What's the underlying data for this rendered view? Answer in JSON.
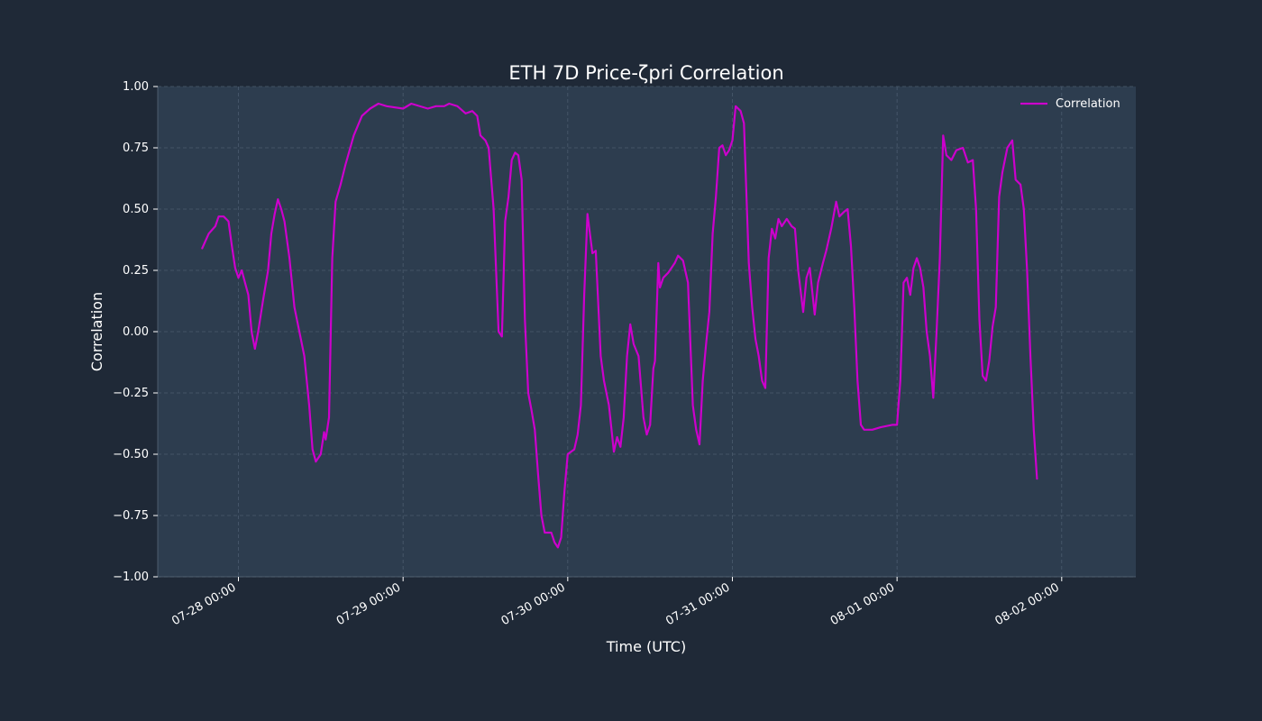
{
  "chart_data": {
    "type": "line",
    "title": "ETH 7D Price-ζpri Correlation",
    "xlabel": "Time (UTC)",
    "ylabel": "Correlation",
    "ylim": [
      -1.0,
      1.0
    ],
    "xlim_days": [
      -0.49,
      5.45
    ],
    "grid": true,
    "legend_position": "top-right",
    "colors": {
      "figure_bg": "#1f2937",
      "axes_bg": "#2d3d4f",
      "series": "#cc00cc",
      "text": "#ffffff",
      "grid": "#4b5b6e"
    },
    "x_ticks": [
      {
        "value": 0,
        "label": "07-28 00:00"
      },
      {
        "value": 1,
        "label": "07-29 00:00"
      },
      {
        "value": 2,
        "label": "07-30 00:00"
      },
      {
        "value": 3,
        "label": "07-31 00:00"
      },
      {
        "value": 4,
        "label": "08-01 00:00"
      },
      {
        "value": 5,
        "label": "08-02 00:00"
      }
    ],
    "y_ticks": [
      {
        "value": -1.0,
        "label": "−1.00"
      },
      {
        "value": -0.75,
        "label": "−0.75"
      },
      {
        "value": -0.5,
        "label": "−0.50"
      },
      {
        "value": -0.25,
        "label": "−0.25"
      },
      {
        "value": 0.0,
        "label": "0.00"
      },
      {
        "value": 0.25,
        "label": "0.25"
      },
      {
        "value": 0.5,
        "label": "0.50"
      },
      {
        "value": 0.75,
        "label": "0.75"
      },
      {
        "value": 1.0,
        "label": "1.00"
      }
    ],
    "series": [
      {
        "name": "Correlation",
        "x_unit": "days since 07-28 00:00 UTC",
        "points": [
          [
            -0.22,
            0.34
          ],
          [
            -0.18,
            0.4
          ],
          [
            -0.14,
            0.43
          ],
          [
            -0.12,
            0.47
          ],
          [
            -0.09,
            0.47
          ],
          [
            -0.06,
            0.45
          ],
          [
            -0.04,
            0.35
          ],
          [
            -0.02,
            0.26
          ],
          [
            0.0,
            0.22
          ],
          [
            0.02,
            0.25
          ],
          [
            0.04,
            0.2
          ],
          [
            0.06,
            0.15
          ],
          [
            0.08,
            0.0
          ],
          [
            0.1,
            -0.07
          ],
          [
            0.12,
            0.0
          ],
          [
            0.15,
            0.13
          ],
          [
            0.18,
            0.25
          ],
          [
            0.2,
            0.4
          ],
          [
            0.22,
            0.48
          ],
          [
            0.24,
            0.54
          ],
          [
            0.26,
            0.5
          ],
          [
            0.28,
            0.45
          ],
          [
            0.31,
            0.3
          ],
          [
            0.34,
            0.1
          ],
          [
            0.37,
            0.0
          ],
          [
            0.4,
            -0.1
          ],
          [
            0.43,
            -0.3
          ],
          [
            0.45,
            -0.48
          ],
          [
            0.47,
            -0.53
          ],
          [
            0.5,
            -0.5
          ],
          [
            0.52,
            -0.41
          ],
          [
            0.53,
            -0.44
          ],
          [
            0.55,
            -0.35
          ],
          [
            0.57,
            0.3
          ],
          [
            0.59,
            0.53
          ],
          [
            0.62,
            0.6
          ],
          [
            0.65,
            0.68
          ],
          [
            0.7,
            0.8
          ],
          [
            0.75,
            0.88
          ],
          [
            0.8,
            0.91
          ],
          [
            0.85,
            0.93
          ],
          [
            0.9,
            0.92
          ],
          [
            1.0,
            0.91
          ],
          [
            1.05,
            0.93
          ],
          [
            1.15,
            0.91
          ],
          [
            1.2,
            0.92
          ],
          [
            1.25,
            0.92
          ],
          [
            1.28,
            0.93
          ],
          [
            1.33,
            0.92
          ],
          [
            1.38,
            0.89
          ],
          [
            1.42,
            0.9
          ],
          [
            1.45,
            0.88
          ],
          [
            1.47,
            0.8
          ],
          [
            1.5,
            0.78
          ],
          [
            1.52,
            0.75
          ],
          [
            1.55,
            0.5
          ],
          [
            1.58,
            0.0
          ],
          [
            1.6,
            -0.02
          ],
          [
            1.62,
            0.45
          ],
          [
            1.64,
            0.55
          ],
          [
            1.66,
            0.7
          ],
          [
            1.68,
            0.73
          ],
          [
            1.7,
            0.72
          ],
          [
            1.72,
            0.62
          ],
          [
            1.74,
            0.05
          ],
          [
            1.76,
            -0.25
          ],
          [
            1.78,
            -0.32
          ],
          [
            1.8,
            -0.4
          ],
          [
            1.82,
            -0.58
          ],
          [
            1.84,
            -0.75
          ],
          [
            1.86,
            -0.82
          ],
          [
            1.9,
            -0.82
          ],
          [
            1.92,
            -0.86
          ],
          [
            1.94,
            -0.88
          ],
          [
            1.96,
            -0.84
          ],
          [
            1.98,
            -0.65
          ],
          [
            2.0,
            -0.5
          ],
          [
            2.04,
            -0.48
          ],
          [
            2.06,
            -0.42
          ],
          [
            2.08,
            -0.3
          ],
          [
            2.1,
            0.15
          ],
          [
            2.12,
            0.48
          ],
          [
            2.15,
            0.32
          ],
          [
            2.17,
            0.33
          ],
          [
            2.2,
            -0.1
          ],
          [
            2.22,
            -0.2
          ],
          [
            2.25,
            -0.3
          ],
          [
            2.28,
            -0.49
          ],
          [
            2.3,
            -0.43
          ],
          [
            2.32,
            -0.47
          ],
          [
            2.34,
            -0.35
          ],
          [
            2.36,
            -0.1
          ],
          [
            2.38,
            0.03
          ],
          [
            2.4,
            -0.05
          ],
          [
            2.43,
            -0.1
          ],
          [
            2.46,
            -0.35
          ],
          [
            2.48,
            -0.42
          ],
          [
            2.5,
            -0.38
          ],
          [
            2.52,
            -0.15
          ],
          [
            2.53,
            -0.12
          ],
          [
            2.55,
            0.28
          ],
          [
            2.56,
            0.18
          ],
          [
            2.58,
            0.22
          ],
          [
            2.61,
            0.24
          ],
          [
            2.65,
            0.28
          ],
          [
            2.67,
            0.31
          ],
          [
            2.7,
            0.29
          ],
          [
            2.73,
            0.2
          ],
          [
            2.76,
            -0.3
          ],
          [
            2.78,
            -0.4
          ],
          [
            2.8,
            -0.46
          ],
          [
            2.82,
            -0.2
          ],
          [
            2.84,
            -0.05
          ],
          [
            2.86,
            0.08
          ],
          [
            2.88,
            0.4
          ],
          [
            2.9,
            0.55
          ],
          [
            2.92,
            0.75
          ],
          [
            2.94,
            0.76
          ],
          [
            2.96,
            0.72
          ],
          [
            2.98,
            0.74
          ],
          [
            3.0,
            0.78
          ],
          [
            3.02,
            0.92
          ],
          [
            3.05,
            0.9
          ],
          [
            3.07,
            0.85
          ],
          [
            3.1,
            0.28
          ],
          [
            3.12,
            0.1
          ],
          [
            3.14,
            -0.03
          ],
          [
            3.16,
            -0.1
          ],
          [
            3.18,
            -0.2
          ],
          [
            3.2,
            -0.23
          ],
          [
            3.22,
            0.3
          ],
          [
            3.24,
            0.42
          ],
          [
            3.26,
            0.38
          ],
          [
            3.28,
            0.46
          ],
          [
            3.3,
            0.43
          ],
          [
            3.33,
            0.46
          ],
          [
            3.36,
            0.43
          ],
          [
            3.38,
            0.42
          ],
          [
            3.4,
            0.25
          ],
          [
            3.43,
            0.08
          ],
          [
            3.45,
            0.22
          ],
          [
            3.47,
            0.26
          ],
          [
            3.5,
            0.07
          ],
          [
            3.52,
            0.2
          ],
          [
            3.55,
            0.28
          ],
          [
            3.57,
            0.33
          ],
          [
            3.6,
            0.42
          ],
          [
            3.63,
            0.53
          ],
          [
            3.65,
            0.47
          ],
          [
            3.68,
            0.49
          ],
          [
            3.7,
            0.5
          ],
          [
            3.72,
            0.35
          ],
          [
            3.74,
            0.1
          ],
          [
            3.76,
            -0.2
          ],
          [
            3.78,
            -0.38
          ],
          [
            3.8,
            -0.4
          ],
          [
            3.85,
            -0.4
          ],
          [
            3.9,
            -0.39
          ],
          [
            3.97,
            -0.38
          ],
          [
            4.0,
            -0.38
          ],
          [
            4.02,
            -0.2
          ],
          [
            4.04,
            0.2
          ],
          [
            4.06,
            0.22
          ],
          [
            4.08,
            0.15
          ],
          [
            4.1,
            0.26
          ],
          [
            4.12,
            0.3
          ],
          [
            4.14,
            0.26
          ],
          [
            4.16,
            0.18
          ],
          [
            4.18,
            0.0
          ],
          [
            4.2,
            -0.1
          ],
          [
            4.22,
            -0.27
          ],
          [
            4.24,
            0.0
          ],
          [
            4.26,
            0.3
          ],
          [
            4.28,
            0.8
          ],
          [
            4.3,
            0.72
          ],
          [
            4.33,
            0.7
          ],
          [
            4.36,
            0.74
          ],
          [
            4.4,
            0.75
          ],
          [
            4.43,
            0.69
          ],
          [
            4.46,
            0.7
          ],
          [
            4.48,
            0.5
          ],
          [
            4.5,
            0.05
          ],
          [
            4.52,
            -0.18
          ],
          [
            4.54,
            -0.2
          ],
          [
            4.56,
            -0.12
          ],
          [
            4.58,
            0.02
          ],
          [
            4.6,
            0.1
          ],
          [
            4.62,
            0.55
          ],
          [
            4.64,
            0.65
          ],
          [
            4.67,
            0.75
          ],
          [
            4.7,
            0.78
          ],
          [
            4.72,
            0.62
          ],
          [
            4.75,
            0.6
          ],
          [
            4.77,
            0.5
          ],
          [
            4.79,
            0.25
          ],
          [
            4.81,
            -0.1
          ],
          [
            4.83,
            -0.4
          ],
          [
            4.85,
            -0.6
          ]
        ]
      }
    ]
  }
}
